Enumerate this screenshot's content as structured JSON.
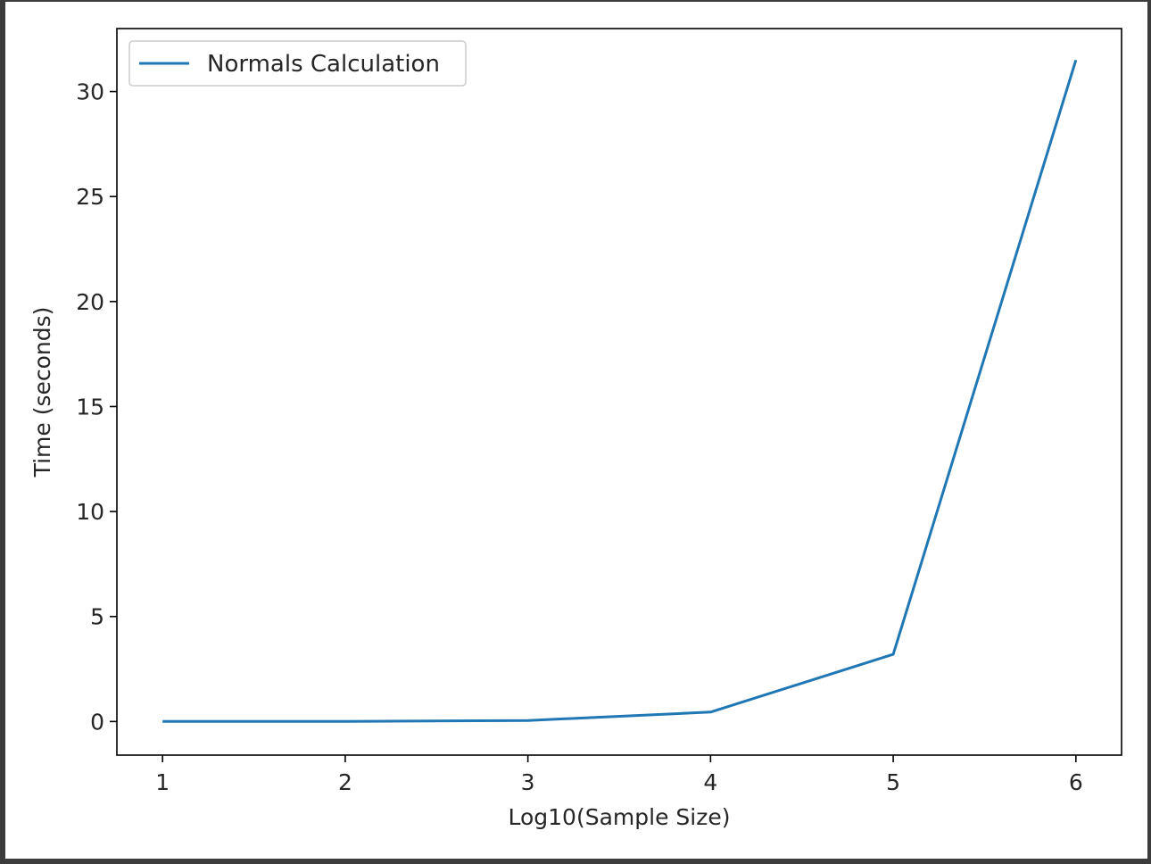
{
  "chart_data": {
    "type": "line",
    "title": "",
    "xlabel": "Log10(Sample Size)",
    "ylabel": "Time (seconds)",
    "x_ticks": [
      1,
      2,
      3,
      4,
      5,
      6
    ],
    "y_ticks": [
      0,
      5,
      10,
      15,
      20,
      25,
      30
    ],
    "xlim": [
      0.75,
      6.25
    ],
    "ylim": [
      -1.6,
      33.0
    ],
    "grid": false,
    "legend_position": "top-left",
    "series": [
      {
        "name": "Normals Calculation",
        "color": "#1f77b4",
        "x": [
          1,
          2,
          3,
          4,
          5,
          6
        ],
        "y": [
          0.002,
          0.005,
          0.05,
          0.45,
          3.2,
          31.5
        ]
      }
    ]
  }
}
